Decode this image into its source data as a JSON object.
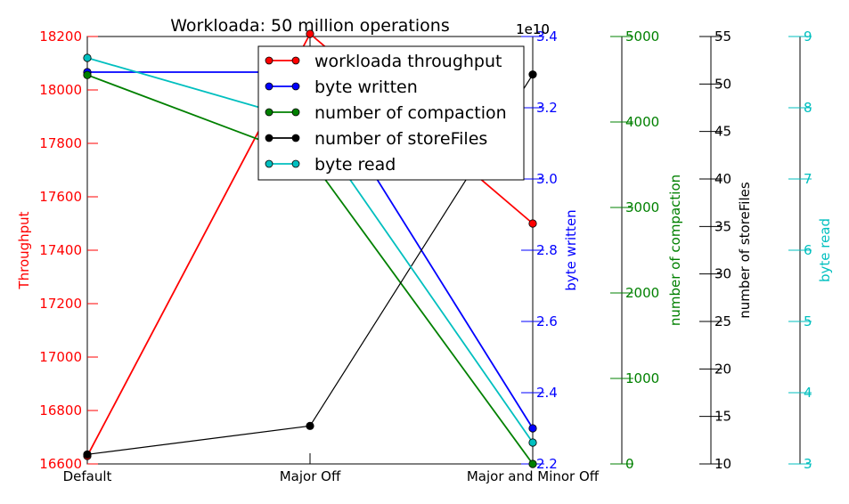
{
  "chart_data": {
    "type": "line",
    "title": "Workloada: 50 million operations",
    "categories": [
      "Default",
      "Major Off",
      "Major and Minor Off"
    ],
    "axes": [
      {
        "id": "throughput",
        "label": "Throughput",
        "color": "#ff0000",
        "min": 16600,
        "max": 18200,
        "ticks": [
          "16600",
          "16800",
          "17000",
          "17200",
          "17400",
          "17600",
          "17800",
          "18000",
          "18200"
        ]
      },
      {
        "id": "bytes_written",
        "label": "byte written",
        "color": "#0000ff",
        "min": 2.2,
        "max": 3.4,
        "multiplier": "1e10",
        "ticks": [
          "2.2",
          "2.4",
          "2.6",
          "2.8",
          "3.0",
          "3.2",
          "3.4"
        ]
      },
      {
        "id": "compactions",
        "label": "number of compaction",
        "color": "#008000",
        "min": 0,
        "max": 5000,
        "ticks": [
          "0",
          "1000",
          "2000",
          "3000",
          "4000",
          "5000"
        ]
      },
      {
        "id": "storefiles",
        "label": "number of storeFiles",
        "color": "#000000",
        "min": 10,
        "max": 55,
        "ticks": [
          "10",
          "15",
          "20",
          "25",
          "30",
          "35",
          "40",
          "45",
          "50",
          "55"
        ]
      },
      {
        "id": "bytes_read",
        "label": "byte read",
        "color": "#00bfbf",
        "min": 3,
        "max": 9,
        "multiplier": "1e10",
        "ticks": [
          "3",
          "4",
          "5",
          "6",
          "7",
          "8",
          "9"
        ]
      }
    ],
    "series": [
      {
        "name": "workloada throughput",
        "axis": "throughput",
        "color": "#ff0000",
        "values": [
          16630,
          18210,
          17500
        ]
      },
      {
        "name": "byte written",
        "axis": "bytes_written",
        "color": "#0000ff",
        "values": [
          3.3,
          3.3,
          2.3
        ]
      },
      {
        "name": "number of compaction",
        "axis": "compactions",
        "color": "#008000",
        "values": [
          4550,
          3570,
          0
        ]
      },
      {
        "name": "number of storeFiles",
        "axis": "storefiles",
        "color": "#000000",
        "values": [
          11,
          14,
          51
        ]
      },
      {
        "name": "byte read",
        "axis": "bytes_read",
        "color": "#00bfbf",
        "values": [
          8.7,
          7.8,
          3.3
        ]
      }
    ],
    "legend": {
      "placement": "top-center"
    },
    "grid": false
  }
}
